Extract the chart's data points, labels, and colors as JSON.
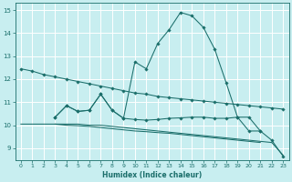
{
  "xlabel": "Humidex (Indice chaleur)",
  "xlim": [
    -0.5,
    23.5
  ],
  "ylim": [
    8.5,
    15.3
  ],
  "yticks": [
    9,
    10,
    11,
    12,
    13,
    14,
    15
  ],
  "xticks": [
    0,
    1,
    2,
    3,
    4,
    5,
    6,
    7,
    8,
    9,
    10,
    11,
    12,
    13,
    14,
    15,
    16,
    17,
    18,
    19,
    20,
    21,
    22,
    23
  ],
  "background_color": "#c8eef0",
  "grid_color": "#ffffff",
  "line_color": "#1a6e6a",
  "series": [
    {
      "x": [
        0,
        1,
        2,
        3,
        4,
        5,
        6,
        7,
        8,
        9,
        10,
        11,
        12,
        13,
        14,
        15,
        16,
        17,
        18,
        19,
        20,
        21,
        22,
        23
      ],
      "y": [
        12.45,
        12.35,
        12.2,
        12.1,
        12.0,
        11.9,
        11.8,
        11.7,
        11.6,
        11.5,
        11.4,
        11.35,
        11.25,
        11.2,
        11.15,
        11.1,
        11.05,
        11.0,
        10.95,
        10.9,
        10.85,
        10.8,
        10.75,
        10.7
      ],
      "marker": true
    },
    {
      "x": [
        3,
        4,
        5,
        6,
        7,
        8,
        9,
        10,
        11,
        12,
        13,
        14,
        15,
        16,
        17,
        18,
        19,
        20,
        21,
        22,
        23
      ],
      "y": [
        10.35,
        10.85,
        10.6,
        10.65,
        11.35,
        10.65,
        10.3,
        12.75,
        12.45,
        13.55,
        14.15,
        14.9,
        14.75,
        14.25,
        13.3,
        11.85,
        10.35,
        10.35,
        9.75,
        9.35,
        8.65
      ],
      "marker": true
    },
    {
      "x": [
        0,
        1,
        2,
        3,
        4,
        5,
        6,
        7,
        8,
        9,
        10,
        11,
        12,
        13,
        14,
        15,
        16,
        17,
        18,
        19,
        20,
        21,
        22,
        23
      ],
      "y": [
        10.05,
        10.05,
        10.05,
        10.05,
        10.05,
        10.05,
        10.0,
        10.0,
        9.95,
        9.9,
        9.85,
        9.8,
        9.75,
        9.7,
        9.65,
        9.6,
        9.55,
        9.5,
        9.45,
        9.4,
        9.35,
        9.3,
        9.25,
        8.7
      ],
      "marker": false
    },
    {
      "x": [
        3,
        4,
        5,
        6,
        7,
        8,
        9,
        10,
        11,
        12,
        13,
        14,
        15,
        16,
        17,
        18,
        19,
        20,
        21
      ],
      "y": [
        10.05,
        10.0,
        9.98,
        9.95,
        9.9,
        9.85,
        9.8,
        9.75,
        9.72,
        9.68,
        9.65,
        9.6,
        9.55,
        9.5,
        9.45,
        9.4,
        9.35,
        9.3,
        9.25
      ],
      "marker": false
    },
    {
      "x": [
        3,
        4,
        5,
        6,
        7,
        8,
        9,
        10,
        11,
        12,
        13,
        14,
        15,
        16,
        17,
        18,
        19,
        20,
        21
      ],
      "y": [
        10.35,
        10.85,
        10.6,
        10.65,
        11.35,
        10.65,
        10.3,
        10.25,
        10.22,
        10.25,
        10.3,
        10.32,
        10.35,
        10.35,
        10.3,
        10.3,
        10.35,
        9.75,
        9.75
      ],
      "marker": true
    }
  ]
}
